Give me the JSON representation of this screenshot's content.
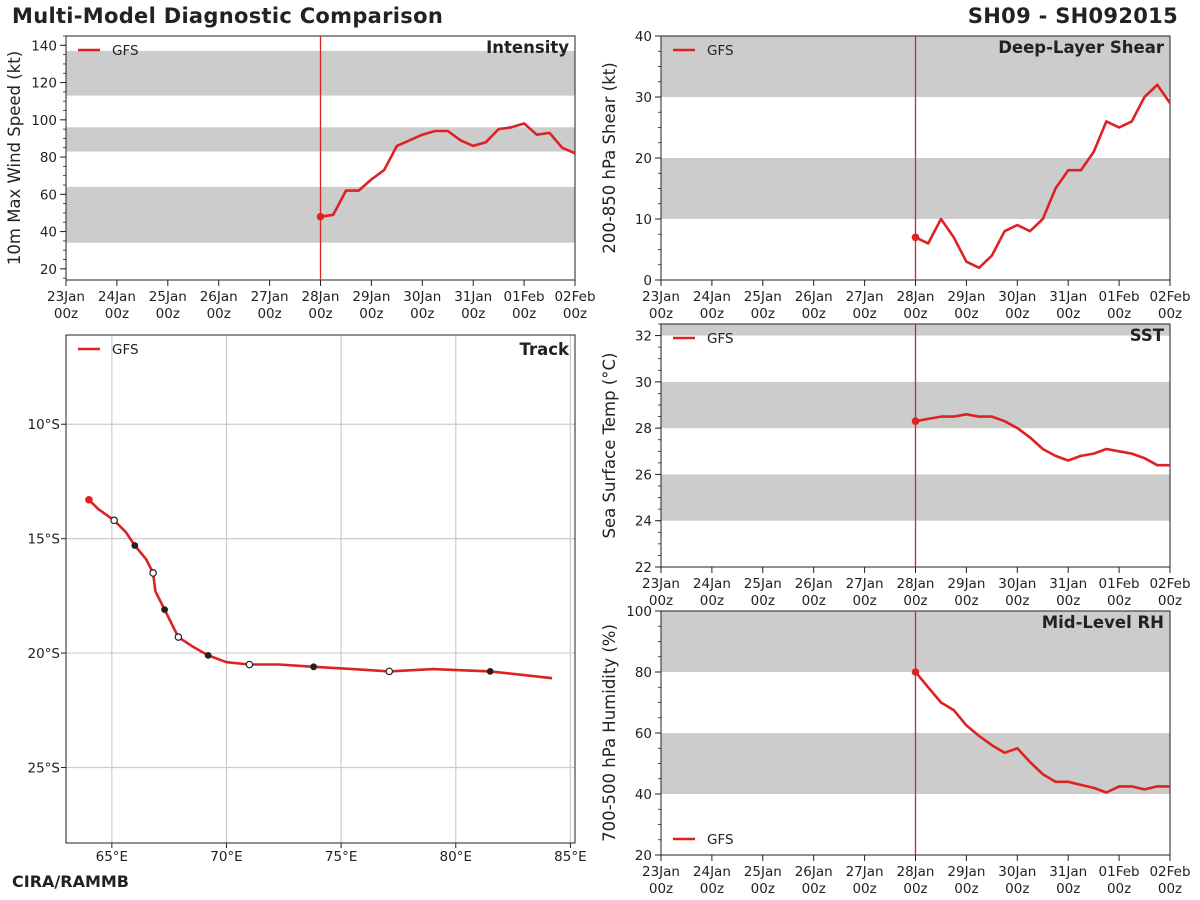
{
  "header": {
    "title": "Multi-Model Diagnostic Comparison",
    "storm_id": "SH09 - SH092015",
    "credit": "CIRA/RAMMB"
  },
  "colors": {
    "model": "#dd2222",
    "band": "#cccccc",
    "grid": "#cccccc",
    "axis": "#222222"
  },
  "chart_data": [
    {
      "id": "intensity",
      "type": "line",
      "title": "Intensity",
      "ylabel": "10m Max Wind Speed (kt)",
      "x_tick_labels": [
        [
          "23Jan",
          "00z"
        ],
        [
          "24Jan",
          "00z"
        ],
        [
          "25Jan",
          "00z"
        ],
        [
          "26Jan",
          "00z"
        ],
        [
          "27Jan",
          "00z"
        ],
        [
          "28Jan",
          "00z"
        ],
        [
          "29Jan",
          "00z"
        ],
        [
          "30Jan",
          "00z"
        ],
        [
          "31Jan",
          "00z"
        ],
        [
          "01Feb",
          "00z"
        ],
        [
          "02Feb",
          "00z"
        ]
      ],
      "xlim_days": [
        0,
        10
      ],
      "ylim": [
        14,
        145
      ],
      "yticks": [
        20,
        40,
        60,
        80,
        100,
        120,
        140
      ],
      "bands": [
        [
          34,
          64
        ],
        [
          83,
          96
        ],
        [
          113,
          137
        ]
      ],
      "init_day": 5,
      "legend": "GFS",
      "legend_position": "top-left",
      "series": [
        {
          "name": "GFS",
          "x_days": [
            5.0,
            5.25,
            5.5,
            5.75,
            6.0,
            6.25,
            6.5,
            6.75,
            7.0,
            7.25,
            7.5,
            7.75,
            8.0,
            8.25,
            8.5,
            8.75,
            9.0,
            9.25,
            9.5,
            9.75,
            10.0
          ],
          "values": [
            48,
            49,
            62,
            62,
            68,
            73,
            86,
            89,
            92,
            94,
            94,
            89,
            86,
            88,
            95,
            96,
            98,
            92,
            93,
            85,
            82
          ]
        }
      ]
    },
    {
      "id": "shear",
      "type": "line",
      "title": "Deep-Layer Shear",
      "ylabel": "200-850 hPa Shear (kt)",
      "x_tick_labels": [
        [
          "23Jan",
          "00z"
        ],
        [
          "24Jan",
          "00z"
        ],
        [
          "25Jan",
          "00z"
        ],
        [
          "26Jan",
          "00z"
        ],
        [
          "27Jan",
          "00z"
        ],
        [
          "28Jan",
          "00z"
        ],
        [
          "29Jan",
          "00z"
        ],
        [
          "30Jan",
          "00z"
        ],
        [
          "31Jan",
          "00z"
        ],
        [
          "01Feb",
          "00z"
        ],
        [
          "02Feb",
          "00z"
        ]
      ],
      "xlim_days": [
        0,
        10
      ],
      "ylim": [
        0,
        40
      ],
      "yticks": [
        0,
        10,
        20,
        30,
        40
      ],
      "bands": [
        [
          10,
          20
        ],
        [
          30,
          40
        ]
      ],
      "init_day": 5,
      "legend": "GFS",
      "legend_position": "top-left",
      "series": [
        {
          "name": "GFS",
          "x_days": [
            5.0,
            5.25,
            5.5,
            5.75,
            6.0,
            6.25,
            6.5,
            6.75,
            7.0,
            7.25,
            7.5,
            7.75,
            8.0,
            8.25,
            8.5,
            8.75,
            9.0,
            9.25,
            9.5,
            9.75,
            10.0
          ],
          "values": [
            7,
            6,
            10,
            7,
            3,
            2,
            4,
            8,
            9,
            8,
            10,
            15,
            18,
            18,
            21,
            26,
            25,
            26,
            30,
            32,
            29
          ]
        }
      ]
    },
    {
      "id": "track",
      "type": "scatter",
      "title": "Track",
      "x_tick_labels": [
        "65°E",
        "70°E",
        "75°E",
        "80°E",
        "85°E"
      ],
      "x_tick_values": [
        65,
        70,
        75,
        80,
        85
      ],
      "y_tick_labels": [
        "10°S",
        "15°S",
        "20°S",
        "25°S"
      ],
      "y_tick_values": [
        -10,
        -15,
        -20,
        -25
      ],
      "xlim": [
        63,
        85.2
      ],
      "ylim": [
        -28.3,
        -6.1
      ],
      "legend": "GFS",
      "legend_position": "top-left",
      "series": [
        {
          "name": "GFS",
          "lon": [
            64.0,
            64.4,
            65.1,
            65.6,
            66.0,
            66.5,
            66.8,
            66.9,
            67.3,
            67.9,
            68.5,
            69.2,
            70.0,
            71.0,
            72.3,
            73.8,
            75.5,
            77.1,
            79.0,
            81.5,
            84.2
          ],
          "lat": [
            -13.3,
            -13.7,
            -14.2,
            -14.7,
            -15.3,
            -15.9,
            -16.5,
            -17.3,
            -18.1,
            -19.3,
            -19.7,
            -20.1,
            -20.4,
            -20.5,
            -20.5,
            -20.6,
            -20.7,
            -20.8,
            -20.7,
            -20.8,
            -21.1
          ],
          "markers": [
            {
              "lon": 64.0,
              "lat": -13.3,
              "style": "initial"
            },
            {
              "lon": 65.1,
              "lat": -14.2,
              "style": "open"
            },
            {
              "lon": 66.0,
              "lat": -15.3,
              "style": "filled"
            },
            {
              "lon": 66.8,
              "lat": -16.5,
              "style": "open"
            },
            {
              "lon": 67.3,
              "lat": -18.1,
              "style": "filled"
            },
            {
              "lon": 67.9,
              "lat": -19.3,
              "style": "open"
            },
            {
              "lon": 69.2,
              "lat": -20.1,
              "style": "filled"
            },
            {
              "lon": 71.0,
              "lat": -20.5,
              "style": "open"
            },
            {
              "lon": 73.8,
              "lat": -20.6,
              "style": "filled"
            },
            {
              "lon": 77.1,
              "lat": -20.8,
              "style": "open"
            },
            {
              "lon": 81.5,
              "lat": -20.8,
              "style": "filled"
            }
          ]
        }
      ]
    },
    {
      "id": "sst",
      "type": "line",
      "title": "SST",
      "ylabel": "Sea Surface Temp (°C)",
      "x_tick_labels": [
        [
          "23Jan",
          "00z"
        ],
        [
          "24Jan",
          "00z"
        ],
        [
          "25Jan",
          "00z"
        ],
        [
          "26Jan",
          "00z"
        ],
        [
          "27Jan",
          "00z"
        ],
        [
          "28Jan",
          "00z"
        ],
        [
          "29Jan",
          "00z"
        ],
        [
          "30Jan",
          "00z"
        ],
        [
          "31Jan",
          "00z"
        ],
        [
          "01Feb",
          "00z"
        ],
        [
          "02Feb",
          "00z"
        ]
      ],
      "xlim_days": [
        0,
        10
      ],
      "ylim": [
        22,
        32.5
      ],
      "yticks": [
        22,
        24,
        26,
        28,
        30,
        32
      ],
      "bands": [
        [
          24,
          26
        ],
        [
          28,
          30
        ],
        [
          32,
          32.5
        ]
      ],
      "init_day": 5,
      "legend": "GFS",
      "legend_position": "top-left",
      "series": [
        {
          "name": "GFS",
          "x_days": [
            5.0,
            5.25,
            5.5,
            5.75,
            6.0,
            6.25,
            6.5,
            6.75,
            7.0,
            7.25,
            7.5,
            7.75,
            8.0,
            8.25,
            8.5,
            8.75,
            9.0,
            9.25,
            9.5,
            9.75,
            10.0
          ],
          "values": [
            28.3,
            28.4,
            28.5,
            28.5,
            28.6,
            28.5,
            28.5,
            28.3,
            28.0,
            27.6,
            27.1,
            26.8,
            26.6,
            26.8,
            26.9,
            27.1,
            27.0,
            26.9,
            26.7,
            26.4,
            26.4
          ]
        }
      ]
    },
    {
      "id": "rh",
      "type": "line",
      "title": "Mid-Level RH",
      "ylabel": "700-500 hPa Humidity (%)",
      "x_tick_labels": [
        [
          "23Jan",
          "00z"
        ],
        [
          "24Jan",
          "00z"
        ],
        [
          "25Jan",
          "00z"
        ],
        [
          "26Jan",
          "00z"
        ],
        [
          "27Jan",
          "00z"
        ],
        [
          "28Jan",
          "00z"
        ],
        [
          "29Jan",
          "00z"
        ],
        [
          "30Jan",
          "00z"
        ],
        [
          "31Jan",
          "00z"
        ],
        [
          "01Feb",
          "00z"
        ],
        [
          "02Feb",
          "00z"
        ]
      ],
      "xlim_days": [
        0,
        10
      ],
      "ylim": [
        20,
        100
      ],
      "yticks": [
        20,
        40,
        60,
        80,
        100
      ],
      "bands": [
        [
          40,
          60
        ],
        [
          80,
          100
        ]
      ],
      "init_day": 5,
      "legend": "GFS",
      "legend_position": "bottom-left",
      "series": [
        {
          "name": "GFS",
          "x_days": [
            5.0,
            5.25,
            5.5,
            5.75,
            6.0,
            6.25,
            6.5,
            6.75,
            7.0,
            7.25,
            7.5,
            7.75,
            8.0,
            8.25,
            8.5,
            8.75,
            9.0,
            9.25,
            9.5,
            9.75,
            10.0
          ],
          "values": [
            80,
            75,
            70,
            67.5,
            62.5,
            59,
            56,
            53.5,
            55,
            50.5,
            46.5,
            44,
            44,
            43,
            42,
            40.5,
            42.5,
            42.5,
            41.5,
            42.5,
            42.5
          ]
        }
      ]
    }
  ]
}
